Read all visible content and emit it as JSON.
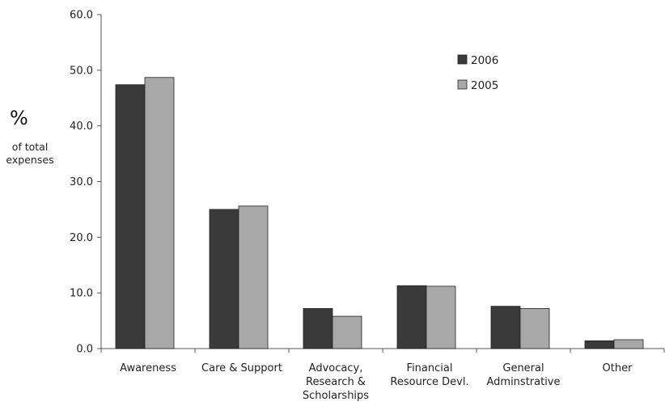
{
  "chart_data": {
    "type": "bar",
    "title": "",
    "ylabel_symbol": "%",
    "ylabel_text": [
      "of total",
      "expenses"
    ],
    "xlabel": "",
    "ylim": [
      0,
      60
    ],
    "yticks": [
      "0.0",
      "10.0",
      "20.0",
      "30.0",
      "40.0",
      "50.0",
      "60.0"
    ],
    "ytick_values": [
      0,
      10,
      20,
      30,
      40,
      50,
      60
    ],
    "grid": false,
    "legend_position": "top-right",
    "categories": [
      [
        "Awareness"
      ],
      [
        "Care & Support"
      ],
      [
        "Advocacy,",
        "Research &",
        "Scholarships"
      ],
      [
        "Financial",
        "Resource Devl."
      ],
      [
        "General",
        "Adminstrative"
      ],
      [
        "Other"
      ]
    ],
    "series": [
      {
        "name": "2006",
        "color": "#3a3a3a",
        "values": [
          47.4,
          25.0,
          7.2,
          11.3,
          7.6,
          1.4
        ]
      },
      {
        "name": "2005",
        "color": "#a8a8a8",
        "values": [
          48.7,
          25.6,
          5.8,
          11.2,
          7.2,
          1.6
        ]
      }
    ]
  }
}
